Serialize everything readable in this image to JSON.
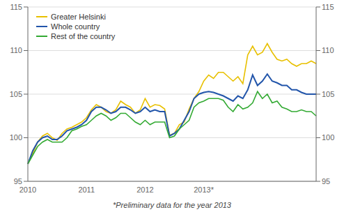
{
  "chart_data": {
    "type": "line",
    "xlabel": "*Preliminary data for the year 2013",
    "categories": [
      "2010",
      null,
      null,
      null,
      null,
      null,
      null,
      null,
      null,
      null,
      null,
      null,
      "2011",
      null,
      null,
      null,
      null,
      null,
      null,
      null,
      null,
      null,
      null,
      null,
      "2012",
      null,
      null,
      null,
      null,
      null,
      null,
      null,
      null,
      null,
      null,
      null,
      "2013*",
      null,
      null,
      null,
      null,
      null,
      null,
      null,
      null,
      null,
      null,
      null,
      null,
      null,
      null,
      null,
      null,
      null,
      null,
      null,
      null,
      null,
      null,
      null
    ],
    "ylim": [
      95,
      115
    ],
    "yticks": [
      95,
      100,
      105,
      110,
      115
    ],
    "y2lim": [
      95,
      115
    ],
    "y2ticks": [
      95,
      100,
      105,
      110,
      115
    ],
    "grid": true,
    "legend": "upper left",
    "series": [
      {
        "name": "Greater Helsinki",
        "color": "#E8C000",
        "values": [
          97.0,
          98.2,
          99.5,
          100.2,
          100.5,
          100.0,
          99.7,
          100.5,
          101.0,
          101.2,
          101.5,
          101.8,
          102.3,
          103.2,
          103.8,
          103.5,
          103.0,
          102.8,
          103.2,
          104.2,
          103.8,
          103.5,
          102.8,
          103.2,
          104.5,
          103.5,
          103.8,
          103.7,
          103.3,
          100.3,
          100.5,
          101.5,
          101.8,
          103.3,
          104.5,
          105.3,
          106.5,
          107.2,
          106.8,
          107.5,
          107.5,
          107.0,
          106.5,
          107.0,
          106.2,
          109.5,
          110.5,
          109.5,
          109.8,
          110.8,
          109.8,
          109.0,
          108.8,
          109.0,
          108.5,
          108.2,
          108.5,
          108.5,
          108.8,
          108.5
        ]
      },
      {
        "name": "Whole country",
        "color": "#2255AA",
        "values": [
          97.0,
          98.5,
          99.5,
          100.0,
          100.2,
          99.8,
          99.8,
          100.2,
          100.8,
          101.0,
          101.2,
          101.5,
          102.0,
          103.0,
          103.5,
          103.5,
          103.2,
          102.8,
          103.0,
          103.5,
          103.5,
          103.2,
          102.8,
          103.0,
          103.5,
          103.0,
          103.2,
          103.0,
          103.0,
          100.2,
          100.5,
          101.0,
          102.0,
          103.0,
          104.5,
          105.0,
          105.2,
          105.3,
          105.2,
          105.0,
          104.8,
          104.5,
          104.2,
          104.8,
          104.5,
          105.5,
          107.2,
          106.0,
          106.5,
          107.3,
          106.5,
          106.3,
          106.0,
          106.0,
          105.5,
          105.5,
          105.2,
          105.0,
          105.0,
          105.0
        ]
      },
      {
        "name": "Rest of the country",
        "color": "#33AA33",
        "values": [
          97.0,
          98.0,
          99.0,
          99.5,
          99.8,
          99.5,
          99.5,
          99.5,
          100.0,
          100.8,
          101.0,
          101.3,
          101.5,
          102.0,
          102.5,
          102.8,
          102.5,
          102.0,
          102.3,
          102.8,
          102.8,
          102.3,
          101.8,
          101.5,
          102.0,
          101.5,
          101.8,
          101.8,
          101.8,
          100.0,
          100.2,
          101.0,
          101.5,
          102.0,
          103.5,
          104.0,
          104.2,
          104.5,
          104.5,
          104.5,
          104.3,
          103.5,
          103.0,
          103.8,
          103.3,
          103.5,
          104.0,
          105.3,
          104.5,
          105.0,
          104.0,
          104.2,
          103.5,
          103.3,
          103.0,
          103.0,
          103.2,
          103.0,
          103.0,
          102.5
        ]
      }
    ]
  }
}
